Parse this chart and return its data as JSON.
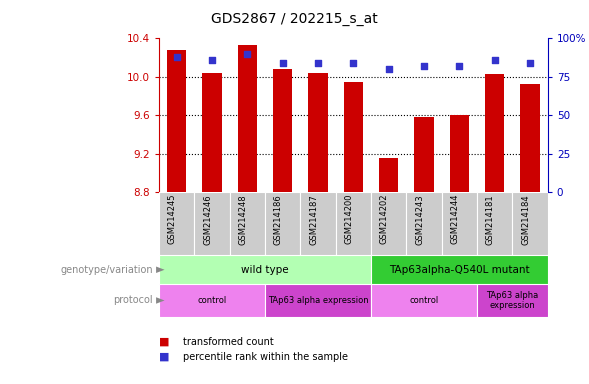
{
  "title": "GDS2867 / 202215_s_at",
  "samples": [
    "GSM214245",
    "GSM214246",
    "GSM214248",
    "GSM214186",
    "GSM214187",
    "GSM214200",
    "GSM214202",
    "GSM214243",
    "GSM214244",
    "GSM214181",
    "GSM214184"
  ],
  "bar_values": [
    10.28,
    10.04,
    10.33,
    10.08,
    10.04,
    9.95,
    9.15,
    9.58,
    9.6,
    10.03,
    9.93
  ],
  "percentile_values": [
    88,
    86,
    90,
    84,
    84,
    84,
    80,
    82,
    82,
    86,
    84
  ],
  "ylim_left": [
    8.8,
    10.4
  ],
  "ylim_right": [
    0,
    100
  ],
  "yticks_left": [
    8.8,
    9.2,
    9.6,
    10.0,
    10.4
  ],
  "yticks_right": [
    0,
    25,
    50,
    75,
    100
  ],
  "bar_color": "#cc0000",
  "dot_color": "#3333cc",
  "bar_width": 0.55,
  "genotype_labels": [
    {
      "label": "wild type",
      "start": 0,
      "end": 6,
      "color": "#b3ffb3"
    },
    {
      "label": "TAp63alpha-Q540L mutant",
      "start": 6,
      "end": 11,
      "color": "#33cc33"
    }
  ],
  "protocol_labels": [
    {
      "label": "control",
      "start": 0,
      "end": 3,
      "color": "#ee82ee"
    },
    {
      "label": "TAp63 alpha expression",
      "start": 3,
      "end": 6,
      "color": "#cc44cc"
    },
    {
      "label": "control",
      "start": 6,
      "end": 9,
      "color": "#ee82ee"
    },
    {
      "label": "TAp63 alpha\nexpression",
      "start": 9,
      "end": 11,
      "color": "#cc44cc"
    }
  ],
  "legend_items": [
    {
      "color": "#cc0000",
      "label": "transformed count"
    },
    {
      "color": "#3333cc",
      "label": "percentile rank within the sample"
    }
  ],
  "axis_label_left_color": "#cc0000",
  "axis_label_right_color": "#0000bb",
  "sample_area_color": "#cccccc",
  "left_label_color": "#888888"
}
